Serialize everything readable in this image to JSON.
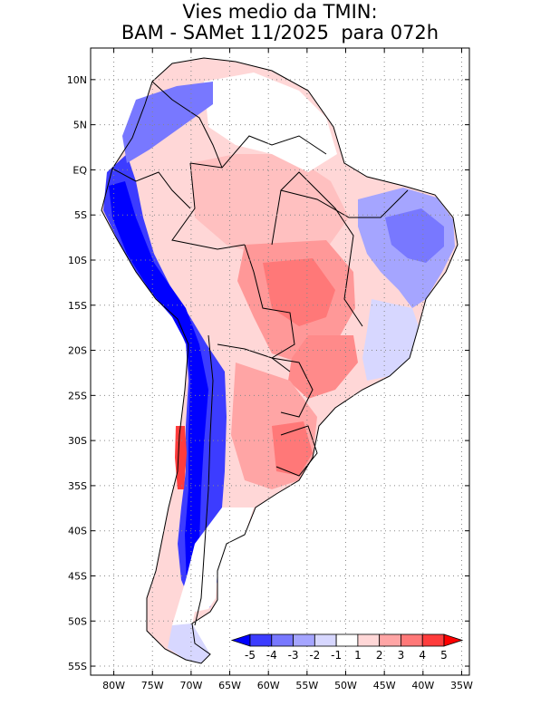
{
  "title": {
    "line1": "Vies medio da TMIN:",
    "line2": "BAM - SAMet 11/2025  para 072h"
  },
  "axes": {
    "lat_labels": [
      "10N",
      "5N",
      "EQ",
      "5S",
      "10S",
      "15S",
      "20S",
      "25S",
      "30S",
      "35S",
      "40S",
      "45S",
      "50S",
      "55S"
    ],
    "lat_values": [
      10,
      5,
      0,
      -5,
      -10,
      -15,
      -20,
      -25,
      -30,
      -35,
      -40,
      -45,
      -50,
      -55
    ],
    "lon_labels": [
      "80W",
      "75W",
      "70W",
      "65W",
      "60W",
      "55W",
      "50W",
      "45W",
      "40W",
      "35W"
    ],
    "lon_values": [
      -80,
      -75,
      -70,
      -65,
      -60,
      -55,
      -50,
      -45,
      -40,
      -35
    ],
    "lon_range": [
      -83,
      -34
    ],
    "lat_range": [
      -56,
      13.5
    ]
  },
  "colorbar": {
    "labels": [
      "-5",
      "-4",
      "-3",
      "-2",
      "-1",
      "1",
      "2",
      "3",
      "4",
      "5"
    ],
    "colors": [
      "#0000ff",
      "#3c3cff",
      "#7878ff",
      "#a5a5ff",
      "#d7d7ff",
      "#ffffff",
      "#ffd7d7",
      "#ffa5a5",
      "#ff7878",
      "#ff3c3c",
      "#ff0000"
    ]
  },
  "colors": {
    "land_outline": "#000000",
    "grid": "#888888",
    "frame": "#000000"
  }
}
